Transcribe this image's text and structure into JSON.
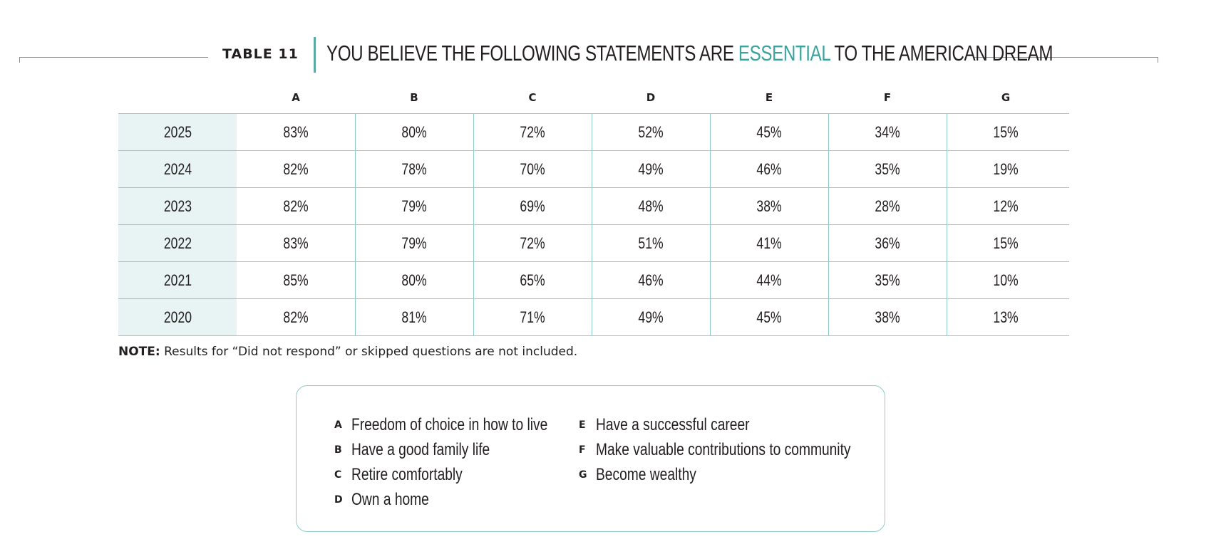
{
  "table_label": "TABLE 11",
  "title": {
    "before": "YOU BELIEVE THE FOLLOWING STATEMENTS ARE ",
    "accent": "ESSENTIAL",
    "after": " TO THE AMERICAN DREAM"
  },
  "colors": {
    "accent": "#3aa39d",
    "row_header_bg": "#e8f4f3",
    "grid_line": "#8fcdc8"
  },
  "chart_data": {
    "type": "table",
    "columns": [
      "A",
      "B",
      "C",
      "D",
      "E",
      "F",
      "G"
    ],
    "rows": [
      {
        "year": "2025",
        "values": [
          "83%",
          "80%",
          "72%",
          "52%",
          "45%",
          "34%",
          "15%"
        ]
      },
      {
        "year": "2024",
        "values": [
          "82%",
          "78%",
          "70%",
          "49%",
          "46%",
          "35%",
          "19%"
        ]
      },
      {
        "year": "2023",
        "values": [
          "82%",
          "79%",
          "69%",
          "48%",
          "38%",
          "28%",
          "12%"
        ]
      },
      {
        "year": "2022",
        "values": [
          "83%",
          "79%",
          "72%",
          "51%",
          "41%",
          "36%",
          "15%"
        ]
      },
      {
        "year": "2021",
        "values": [
          "85%",
          "80%",
          "65%",
          "46%",
          "44%",
          "35%",
          "10%"
        ]
      },
      {
        "year": "2020",
        "values": [
          "82%",
          "81%",
          "71%",
          "49%",
          "45%",
          "38%",
          "13%"
        ]
      }
    ]
  },
  "note": {
    "label": "NOTE:",
    "text": " Results for “Did not respond” or skipped questions are not included."
  },
  "legend": [
    {
      "key": "A",
      "text": "Freedom of choice in how to live"
    },
    {
      "key": "B",
      "text": "Have a good family life"
    },
    {
      "key": "C",
      "text": "Retire comfortably"
    },
    {
      "key": "D",
      "text": "Own a home"
    },
    {
      "key": "E",
      "text": "Have a successful career"
    },
    {
      "key": "F",
      "text": "Make valuable contributions to community"
    },
    {
      "key": "G",
      "text": "Become wealthy"
    }
  ]
}
